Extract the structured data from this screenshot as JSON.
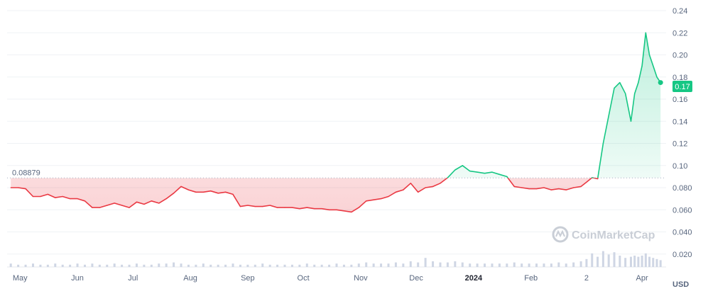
{
  "chart_data": {
    "type": "area",
    "currency_label": "USD",
    "reference_value": 0.08879,
    "reference_label": "0.08879",
    "current_price_label": "0.17",
    "watermark": "CoinMarketCap",
    "ylim": [
      0.0,
      0.24
    ],
    "y_ticks": [
      "0.020",
      "0.040",
      "0.060",
      "0.080",
      "0.10",
      "0.12",
      "0.14",
      "0.16",
      "0.18",
      "0.20",
      "0.22",
      "0.24"
    ],
    "y_tick_values": [
      0.02,
      0.04,
      0.06,
      0.08,
      0.1,
      0.12,
      0.14,
      0.16,
      0.18,
      0.2,
      0.22,
      0.24
    ],
    "x_ticks": [
      "May",
      "Jun",
      "Jul",
      "Aug",
      "Sep",
      "Oct",
      "Nov",
      "Dec",
      "2024",
      "Feb",
      "2",
      "Apr"
    ],
    "x_tick_dates": [
      "2023-05-01",
      "2023-06-01",
      "2023-07-01",
      "2023-08-01",
      "2023-09-01",
      "2023-10-01",
      "2023-11-01",
      "2023-12-01",
      "2024-01-01",
      "2024-02-01",
      "2024-03-02",
      "2024-04-01"
    ],
    "x_bold_ticks": [
      "2024"
    ],
    "colors": {
      "up": "#16c784",
      "down": "#ea3943",
      "grid": "#eff2f5",
      "volume": "#cfd6e4",
      "label": "#58667e"
    },
    "series": [
      {
        "x": [
          "2023-04-26",
          "2023-04-30",
          "2023-05-04",
          "2023-05-08",
          "2023-05-12",
          "2023-05-16",
          "2023-05-20",
          "2023-05-24",
          "2023-05-28",
          "2023-06-01",
          "2023-06-05",
          "2023-06-09",
          "2023-06-13",
          "2023-06-17",
          "2023-06-21",
          "2023-06-25",
          "2023-06-29",
          "2023-07-03",
          "2023-07-07",
          "2023-07-11",
          "2023-07-15",
          "2023-07-19",
          "2023-07-23",
          "2023-07-27",
          "2023-07-31",
          "2023-08-04",
          "2023-08-08",
          "2023-08-12",
          "2023-08-16",
          "2023-08-20",
          "2023-08-24",
          "2023-08-28",
          "2023-09-01",
          "2023-09-05",
          "2023-09-09",
          "2023-09-13",
          "2023-09-17",
          "2023-09-21",
          "2023-09-25",
          "2023-09-29",
          "2023-10-03",
          "2023-10-07",
          "2023-10-11",
          "2023-10-15",
          "2023-10-19",
          "2023-10-23",
          "2023-10-27",
          "2023-10-31",
          "2023-11-04",
          "2023-11-08",
          "2023-11-12",
          "2023-11-16",
          "2023-11-20",
          "2023-11-24",
          "2023-11-28",
          "2023-12-02",
          "2023-12-06",
          "2023-12-10",
          "2023-12-14",
          "2023-12-18",
          "2023-12-22",
          "2023-12-26",
          "2023-12-30",
          "2024-01-03",
          "2024-01-07",
          "2024-01-11",
          "2024-01-15",
          "2024-01-19",
          "2024-01-23",
          "2024-01-27",
          "2024-01-31",
          "2024-02-04",
          "2024-02-08",
          "2024-02-12",
          "2024-02-16",
          "2024-02-20",
          "2024-02-24",
          "2024-02-28",
          "2024-03-02",
          "2024-03-05",
          "2024-03-08",
          "2024-03-11",
          "2024-03-14",
          "2024-03-17",
          "2024-03-20",
          "2024-03-23",
          "2024-03-26",
          "2024-03-28",
          "2024-03-30",
          "2024-04-01",
          "2024-04-03",
          "2024-04-05",
          "2024-04-07",
          "2024-04-09",
          "2024-04-11"
        ],
        "values": [
          0.08,
          0.08,
          0.079,
          0.072,
          0.072,
          0.074,
          0.071,
          0.072,
          0.07,
          0.07,
          0.068,
          0.062,
          0.062,
          0.064,
          0.066,
          0.064,
          0.062,
          0.067,
          0.065,
          0.068,
          0.066,
          0.07,
          0.075,
          0.081,
          0.078,
          0.076,
          0.076,
          0.077,
          0.075,
          0.076,
          0.074,
          0.063,
          0.064,
          0.063,
          0.063,
          0.064,
          0.062,
          0.062,
          0.062,
          0.061,
          0.062,
          0.061,
          0.061,
          0.06,
          0.06,
          0.059,
          0.058,
          0.062,
          0.068,
          0.069,
          0.07,
          0.072,
          0.076,
          0.078,
          0.084,
          0.076,
          0.08,
          0.081,
          0.084,
          0.089,
          0.096,
          0.1,
          0.095,
          0.094,
          0.093,
          0.094,
          0.092,
          0.09,
          0.081,
          0.08,
          0.079,
          0.079,
          0.08,
          0.078,
          0.079,
          0.078,
          0.08,
          0.081,
          0.085,
          0.089,
          0.088,
          0.12,
          0.145,
          0.17,
          0.175,
          0.165,
          0.14,
          0.165,
          0.175,
          0.19,
          0.22,
          0.2,
          0.19,
          0.18,
          0.175
        ]
      }
    ],
    "volume_values": [
      3,
      2,
      2,
      3,
      2,
      2,
      3,
      2,
      2,
      3,
      2,
      3,
      2,
      2,
      3,
      2,
      2,
      3,
      2,
      2,
      3,
      3,
      4,
      3,
      2,
      2,
      3,
      2,
      2,
      2,
      3,
      2,
      2,
      2,
      3,
      2,
      2,
      2,
      2,
      2,
      3,
      2,
      2,
      2,
      3,
      2,
      2,
      3,
      4,
      3,
      3,
      3,
      4,
      3,
      5,
      4,
      8,
      5,
      4,
      4,
      5,
      4,
      3,
      3,
      3,
      3,
      3,
      3,
      4,
      3,
      3,
      3,
      3,
      3,
      4,
      3,
      4,
      5,
      7,
      12,
      9,
      14,
      11,
      13,
      10,
      8,
      9,
      10,
      9,
      10,
      12,
      9,
      8,
      7,
      6
    ]
  }
}
